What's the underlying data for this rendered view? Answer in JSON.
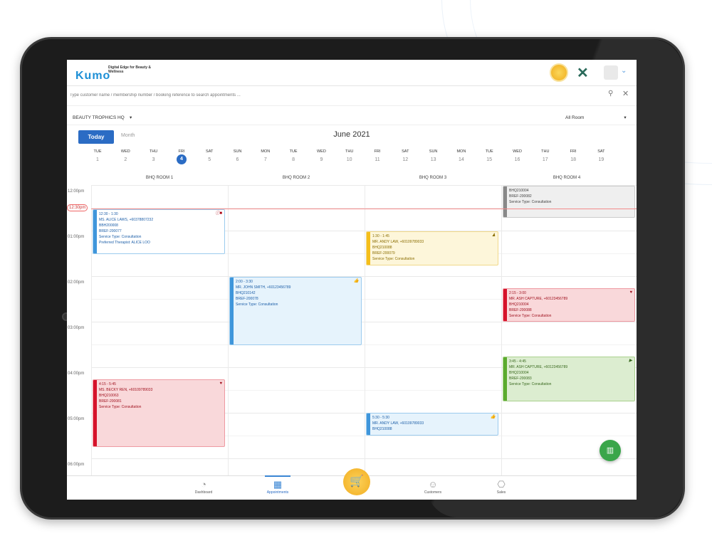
{
  "header": {
    "logo_text": "Kumo",
    "tagline": "Digital Edge for Beauty & Wellness"
  },
  "search": {
    "placeholder": "Type customer name / membership number / booking reference to search appointments ..."
  },
  "branch": "BEAUTY TROPHICS HQ",
  "room_filter": "All Room",
  "controls": {
    "today": "Today",
    "month": "Month",
    "title": "June 2021"
  },
  "days": [
    {
      "name": "TUE",
      "num": "1"
    },
    {
      "name": "WED",
      "num": "2"
    },
    {
      "name": "THU",
      "num": "3"
    },
    {
      "name": "FRI",
      "num": "4",
      "selected": true
    },
    {
      "name": "SAT",
      "num": "5"
    },
    {
      "name": "SUN",
      "num": "6"
    },
    {
      "name": "MON",
      "num": "7"
    },
    {
      "name": "TUE",
      "num": "8"
    },
    {
      "name": "WED",
      "num": "9"
    },
    {
      "name": "THU",
      "num": "10"
    },
    {
      "name": "FRI",
      "num": "11"
    },
    {
      "name": "SAT",
      "num": "12"
    },
    {
      "name": "SUN",
      "num": "13"
    },
    {
      "name": "MON",
      "num": "14"
    },
    {
      "name": "TUE",
      "num": "15"
    },
    {
      "name": "WED",
      "num": "16"
    },
    {
      "name": "THU",
      "num": "17"
    },
    {
      "name": "FRI",
      "num": "18"
    },
    {
      "name": "SAT",
      "num": "19"
    }
  ],
  "rooms": [
    "BHQ ROOM 1",
    "BHQ ROOM 2",
    "BHQ ROOM 3",
    "BHQ ROOM 4"
  ],
  "times": [
    "12:00pm",
    "01:00pm",
    "02:00pm",
    "03:00pm",
    "04:00pm",
    "05:00pm",
    "06:00pm"
  ],
  "now_label": "12:30pm",
  "events": [
    {
      "lines": [
        "12:30 - 1:30",
        "MS. ALICE LAWS, +60378807232",
        "BBH200008",
        "BREF-200077",
        "Service Type: Consultation",
        "Preferred Therapist: ALICE LOO"
      ],
      "icon": "info-gift"
    },
    {
      "lines": [
        "2:00 - 3:30",
        "MR. JOHN SMITH, +60123456789",
        "BHQ210142",
        "BREF-200078",
        "Service Type: Consultation"
      ],
      "icon": "thumbs-up"
    },
    {
      "lines": [
        "4:15 - 5:45",
        "MS. BECKY REN, +60109789033",
        "BHQ210063",
        "BREF-200081",
        "Service Type: Consultation"
      ],
      "icon": "heart"
    },
    {
      "lines": [
        "1:30 - 1:45",
        "MR. ANDY LAW, +60109789033",
        "BHQ210088",
        "BREF-200079",
        "Service Type: Consultation"
      ],
      "icon": "person"
    },
    {
      "lines": [
        "5:30 - 5:30",
        "MR. ANDY LAW, +60109789033",
        "BHQ210088"
      ],
      "icon": "thumbs-up"
    },
    {
      "lines": [
        "BHQ210004",
        "BREF-200082",
        "Service Type: Consultation"
      ],
      "icon": ""
    },
    {
      "lines": [
        "2:15 - 3:00",
        "MR. ASH CAPTURE, +60123456789",
        "BHQ210004",
        "BREF-200088",
        "Service Type: Consultation"
      ],
      "icon": "heart"
    },
    {
      "lines": [
        "3:45 - 4:45",
        "MR. ASH CAPTURE, +60123456789",
        "BHQ210004",
        "BREF-200083",
        "Service Type: Consultation"
      ],
      "icon": "play"
    }
  ],
  "nav": [
    {
      "label": "Dashboard"
    },
    {
      "label": "Appointments",
      "active": true
    },
    {
      "label": "Customers"
    },
    {
      "label": "Sales"
    }
  ],
  "colors": {
    "accent": "#2b6cc4",
    "now_line": "#f28b8b",
    "fab": "#3aa64a",
    "cart": "#f2ad20"
  }
}
